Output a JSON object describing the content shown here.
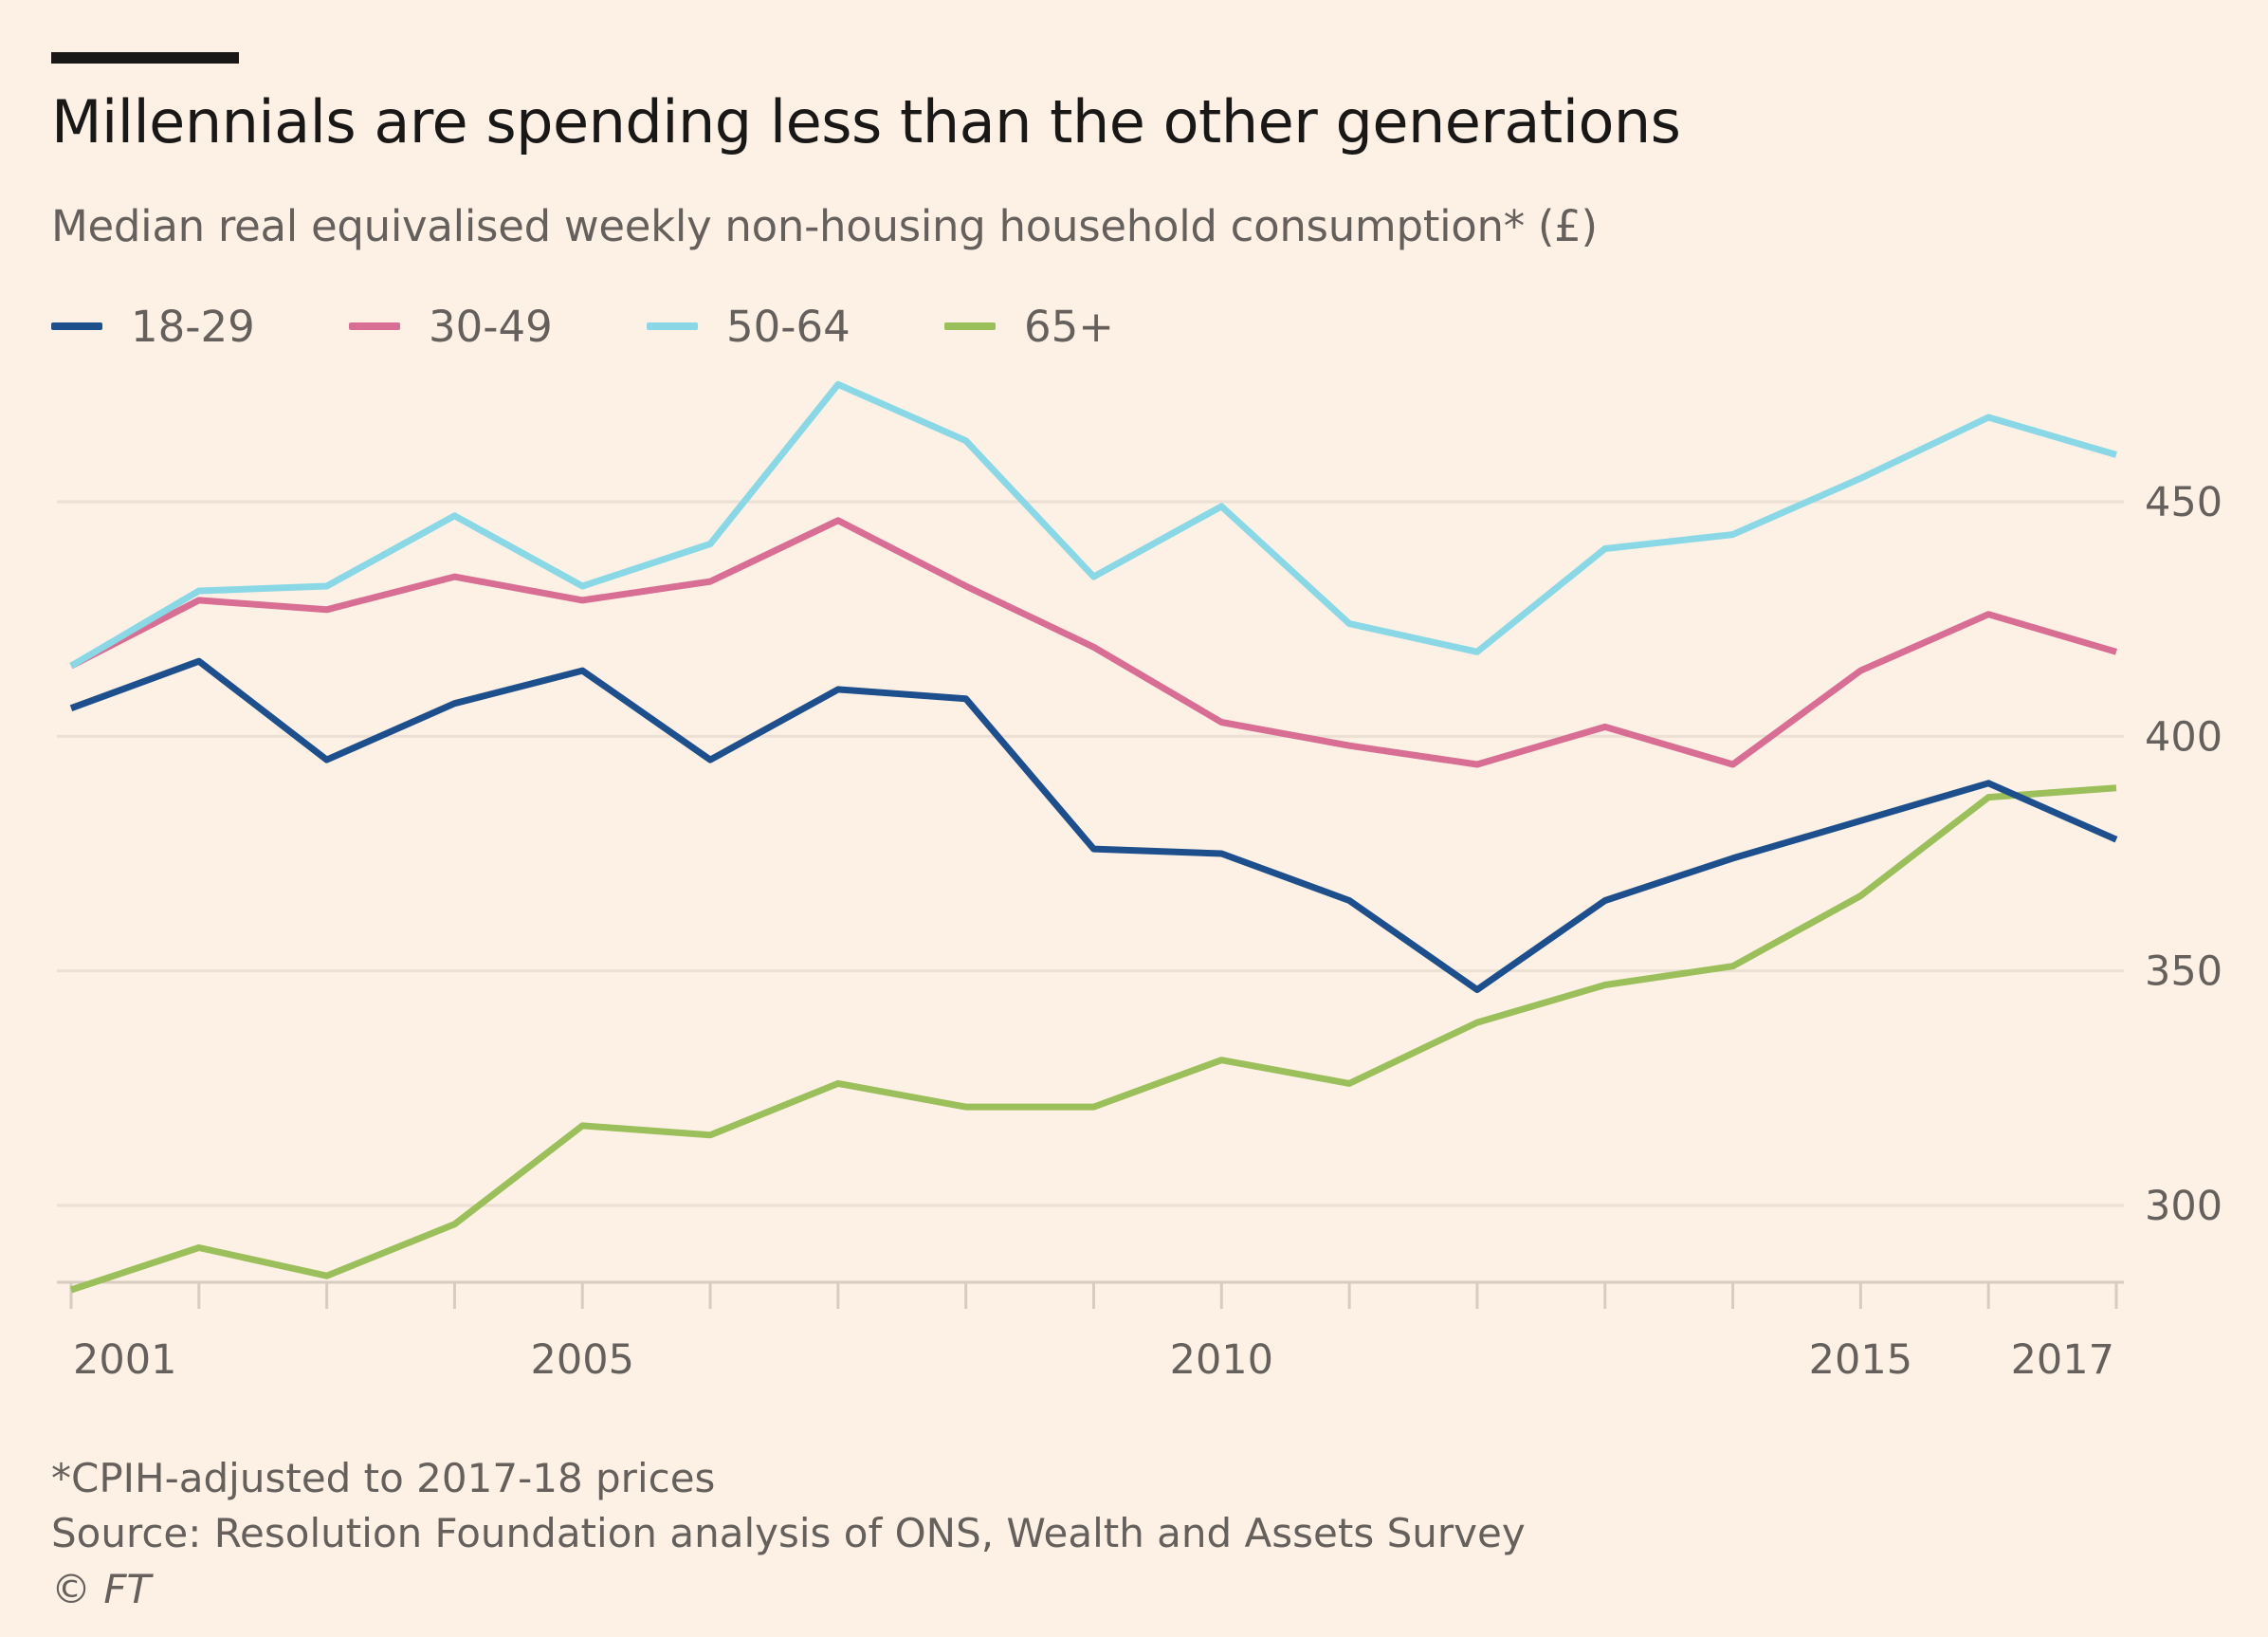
{
  "header": {
    "title": "Millennials are spending less than the other generations",
    "subtitle": "Median real equivalised weekly non-housing household consumption* (£)"
  },
  "legend": [
    {
      "label": "18-29",
      "color": "#1e4f8d"
    },
    {
      "label": "30-49",
      "color": "#d96e94"
    },
    {
      "label": "50-64",
      "color": "#8ad8e6"
    },
    {
      "label": "65+",
      "color": "#9bbf5a"
    }
  ],
  "chart_data": {
    "type": "line",
    "title": "Millennials are spending less than the other generations",
    "subtitle": "Median real equivalised weekly non-housing household consumption* (£)",
    "xlabel": "",
    "ylabel": "",
    "x": [
      2001,
      2002,
      2003,
      2004,
      2005,
      2006,
      2007,
      2008,
      2009,
      2010,
      2011,
      2012,
      2013,
      2014,
      2015,
      2016,
      2017
    ],
    "x_tick_labels": [
      "2001",
      "2005",
      "2010",
      "2015",
      "2017"
    ],
    "x_tick_values": [
      2001,
      2005,
      2010,
      2015,
      2017
    ],
    "y_tick_labels": [
      "300",
      "350",
      "400",
      "450"
    ],
    "y_tick_values": [
      300,
      350,
      400,
      450
    ],
    "xlim": [
      2001,
      2017
    ],
    "ylim": [
      283,
      483
    ],
    "grid": true,
    "y_axis_position": "right",
    "legend_position": "top-left",
    "series": [
      {
        "name": "18-29",
        "color": "#1e4f8d",
        "values": [
          406,
          416,
          395,
          407,
          414,
          395,
          410,
          408,
          376,
          375,
          365,
          346,
          365,
          374,
          382,
          390,
          378
        ]
      },
      {
        "name": "30-49",
        "color": "#d96e94",
        "values": [
          415,
          429,
          427,
          434,
          429,
          433,
          446,
          432,
          419,
          403,
          398,
          394,
          402,
          394,
          414,
          426,
          418
        ]
      },
      {
        "name": "50-64",
        "color": "#8ad8e6",
        "values": [
          415,
          431,
          432,
          447,
          432,
          441,
          475,
          463,
          434,
          449,
          424,
          418,
          440,
          443,
          455,
          468,
          460
        ]
      },
      {
        "name": "65+",
        "color": "#9bbf5a",
        "values": [
          282,
          291,
          285,
          296,
          317,
          315,
          326,
          321,
          321,
          331,
          326,
          339,
          347,
          351,
          366,
          387,
          389
        ]
      }
    ]
  },
  "footer": {
    "note": "*CPIH-adjusted to 2017-18 prices",
    "source": "Source: Resolution Foundation analysis of ONS, Wealth and Assets Survey",
    "copyright": "© FT"
  }
}
